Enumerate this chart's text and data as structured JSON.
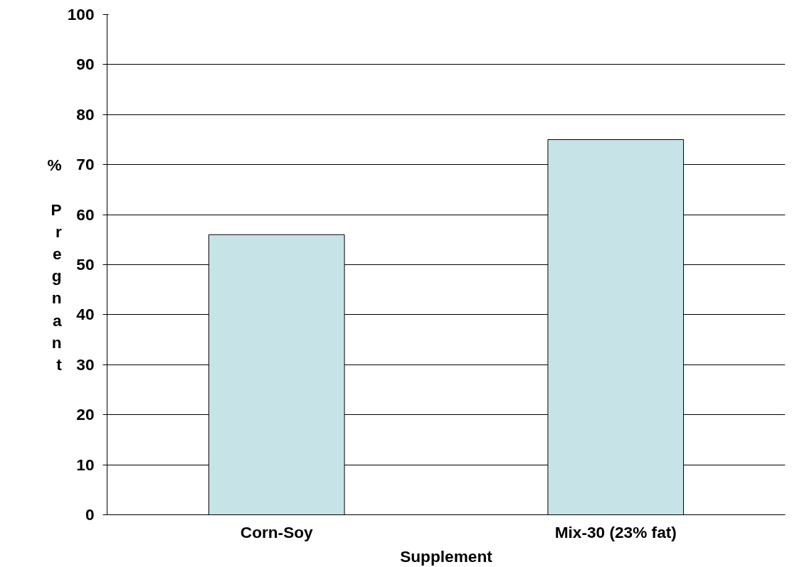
{
  "chart_data": {
    "type": "bar",
    "categories": [
      "Corn-Soy",
      "Mix-30 (23% fat)"
    ],
    "values": [
      56,
      75
    ],
    "color": "#c6e4e8",
    "xlabel": "Supplement",
    "ylabel": "% Pregnant",
    "ylim": [
      0,
      100
    ],
    "yticks": [
      0,
      10,
      20,
      30,
      40,
      50,
      60,
      70,
      80,
      90,
      100
    ],
    "grid": "y"
  }
}
